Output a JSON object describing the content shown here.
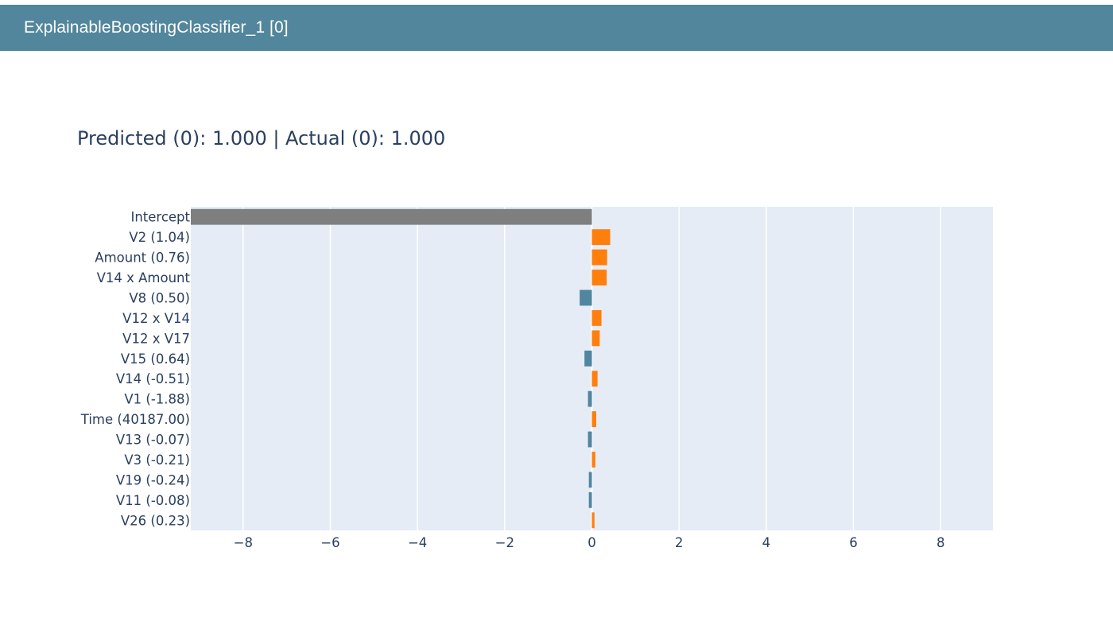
{
  "header": {
    "title": "ExplainableBoostingClassifier_1 [0]"
  },
  "chart_data": {
    "type": "bar",
    "orientation": "horizontal",
    "title": "Predicted (0): 1.000 | Actual (0): 1.000",
    "xlabel": "",
    "ylabel": "",
    "xlim": [
      -9.2,
      9.2
    ],
    "x_ticks": [
      -8,
      -6,
      -4,
      -2,
      0,
      2,
      4,
      6,
      8
    ],
    "x_tick_labels": [
      "−8",
      "−6",
      "−4",
      "−2",
      "0",
      "2",
      "4",
      "6",
      "8"
    ],
    "grid": true,
    "legend": "none",
    "categories": [
      "Intercept",
      "V2 (1.04)",
      "Amount (0.76)",
      "V14 x Amount",
      "V8 (0.50)",
      "V12 x V14",
      "V12 x V17",
      "V15 (0.64)",
      "V14 (-0.51)",
      "V1 (-1.88)",
      "Time (40187.00)",
      "V13 (-0.07)",
      "V3 (-0.21)",
      "V19 (-0.24)",
      "V11 (-0.08)",
      "V26 (0.23)"
    ],
    "values": [
      -9.2,
      0.42,
      0.35,
      0.34,
      -0.28,
      0.22,
      0.18,
      -0.17,
      0.13,
      -0.09,
      0.1,
      -0.09,
      0.08,
      -0.07,
      -0.07,
      0.06
    ],
    "colors": {
      "intercept": "#7f7f7f",
      "positive": "#ff7f0e",
      "negative": "#5086a0",
      "plot_bg": "#e5ecf6",
      "grid": "#ffffff",
      "header_bg": "#52869c",
      "text": "#2a3f5f"
    }
  }
}
